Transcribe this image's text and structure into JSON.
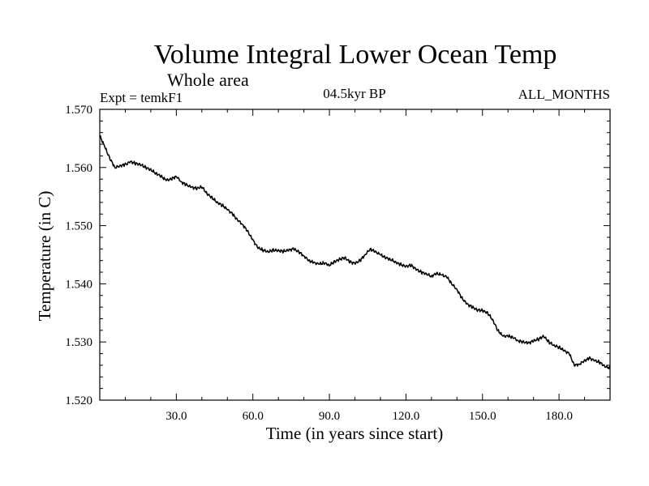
{
  "chart_data": {
    "type": "line",
    "title": "Volume Integral Lower Ocean Temp",
    "subtitle": "Whole area",
    "experiment_label": "Expt = temkF1",
    "period_label": "04.5kyr BP",
    "months_label": "ALL_MONTHS",
    "xlabel": "Time (in years since start)",
    "ylabel": "Temperature (in C)",
    "xlim": [
      0,
      200
    ],
    "ylim": [
      1.52,
      1.57
    ],
    "x_ticks": [
      30,
      60,
      90,
      120,
      150,
      180
    ],
    "x_tick_labels": [
      "30.0",
      "60.0",
      "90.0",
      "120.0",
      "150.0",
      "180.0"
    ],
    "y_ticks": [
      1.52,
      1.53,
      1.54,
      1.55,
      1.56,
      1.57
    ],
    "y_tick_labels": [
      "1.520",
      "1.530",
      "1.540",
      "1.550",
      "1.560",
      "1.570"
    ],
    "grid": false,
    "series": [
      {
        "name": "temkF1",
        "color": "#000000",
        "x": [
          0,
          2,
          4,
          6,
          8,
          10,
          12,
          14,
          16,
          18,
          20,
          22,
          24,
          26,
          28,
          30,
          32,
          34,
          36,
          38,
          40,
          42,
          44,
          46,
          48,
          50,
          52,
          54,
          56,
          58,
          60,
          62,
          64,
          66,
          68,
          70,
          72,
          74,
          76,
          78,
          80,
          82,
          84,
          86,
          88,
          90,
          92,
          94,
          96,
          98,
          100,
          102,
          104,
          106,
          108,
          110,
          112,
          114,
          116,
          118,
          120,
          122,
          124,
          126,
          128,
          130,
          132,
          134,
          136,
          138,
          140,
          142,
          144,
          146,
          148,
          150,
          152,
          154,
          156,
          158,
          160,
          162,
          164,
          166,
          168,
          170,
          172,
          174,
          176,
          178,
          180,
          182,
          184,
          186,
          188,
          190,
          192,
          194,
          196,
          198,
          200
        ],
        "values": [
          1.5655,
          1.5635,
          1.5615,
          1.56,
          1.5603,
          1.5605,
          1.561,
          1.5607,
          1.5605,
          1.56,
          1.5596,
          1.559,
          1.5585,
          1.5578,
          1.558,
          1.5585,
          1.5575,
          1.557,
          1.5566,
          1.5564,
          1.5567,
          1.5555,
          1.5548,
          1.554,
          1.5535,
          1.5528,
          1.552,
          1.551,
          1.5502,
          1.549,
          1.5475,
          1.5462,
          1.5458,
          1.5455,
          1.5458,
          1.5457,
          1.5456,
          1.5458,
          1.546,
          1.5455,
          1.5448,
          1.544,
          1.5436,
          1.5434,
          1.5436,
          1.5432,
          1.5438,
          1.5442,
          1.5445,
          1.5438,
          1.5435,
          1.544,
          1.545,
          1.546,
          1.5455,
          1.545,
          1.5445,
          1.5442,
          1.5437,
          1.5433,
          1.543,
          1.5432,
          1.5425,
          1.542,
          1.5417,
          1.5413,
          1.5418,
          1.5415,
          1.5412,
          1.54,
          1.539,
          1.5375,
          1.5365,
          1.536,
          1.5355,
          1.5354,
          1.535,
          1.5338,
          1.532,
          1.531,
          1.531,
          1.5308,
          1.5302,
          1.53,
          1.5298,
          1.5302,
          1.5305,
          1.531,
          1.53,
          1.5294,
          1.5291,
          1.5285,
          1.528,
          1.526,
          1.5262,
          1.5268,
          1.5272,
          1.5268,
          1.5265,
          1.5258,
          1.5255
        ]
      }
    ]
  }
}
